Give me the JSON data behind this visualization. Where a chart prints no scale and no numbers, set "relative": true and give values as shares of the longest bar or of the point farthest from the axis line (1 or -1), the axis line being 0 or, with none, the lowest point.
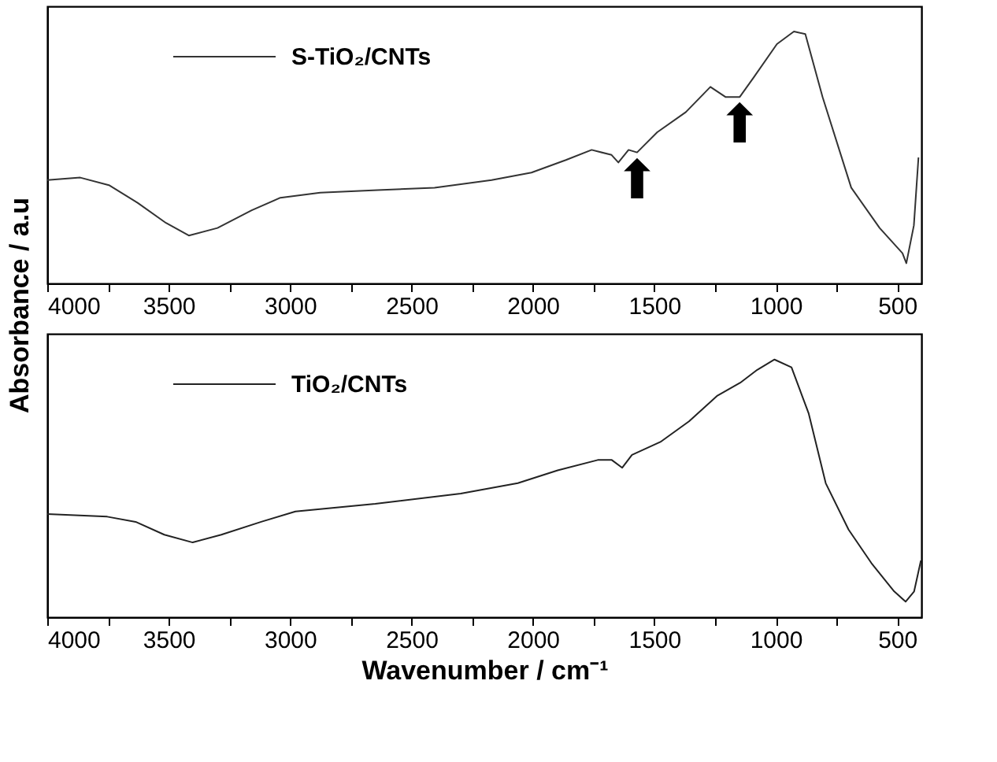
{
  "chart_data": [
    {
      "type": "line",
      "relative": true,
      "legend": "top left",
      "tick_labels": "x",
      "ylabel": "Absorbance / a.u",
      "xlim": [
        4000,
        400
      ],
      "xticks": [
        4000,
        {
          "value": 3750,
          "label": null
        },
        3500,
        {
          "value": 3250,
          "label": null
        },
        3000,
        {
          "value": 2750,
          "label": null
        },
        2500,
        {
          "value": 2250,
          "label": null
        },
        2000,
        {
          "value": 1750,
          "label": null
        },
        1500,
        {
          "value": 1250,
          "label": null
        },
        1000,
        {
          "value": 750,
          "label": null
        },
        500
      ],
      "annotations": [
        {
          "text": "⬆",
          "x": 1571,
          "y": 0.52
        },
        {
          "text": "⬆",
          "x": 1148,
          "y": 0.74
        }
      ],
      "series": [
        {
          "name": "S-TiO₂/CNTs",
          "color": "#333333",
          "x": [
            4000,
            3864,
            3746,
            3628,
            3511,
            3417,
            3299,
            3158,
            3040,
            2876,
            2640,
            2405,
            2170,
            2006,
            1864,
            1758,
            1676,
            1648,
            1606,
            1571,
            1488,
            1370,
            1269,
            1207,
            1148,
            1089,
            995,
            925,
            878,
            807,
            689,
            572,
            478,
            462,
            431,
            412
          ],
          "values": [
            0.41,
            0.42,
            0.39,
            0.32,
            0.24,
            0.19,
            0.22,
            0.29,
            0.34,
            0.36,
            0.37,
            0.38,
            0.41,
            0.44,
            0.49,
            0.53,
            0.51,
            0.48,
            0.53,
            0.52,
            0.6,
            0.68,
            0.78,
            0.74,
            0.74,
            0.82,
            0.95,
            1.0,
            0.99,
            0.74,
            0.38,
            0.22,
            0.12,
            0.08,
            0.23,
            0.5
          ]
        }
      ]
    },
    {
      "type": "line",
      "relative": true,
      "legend": "top left",
      "tick_labels": "x",
      "xlabel": "Wavenumber / cm⁻¹",
      "xlim": [
        4000,
        400
      ],
      "xticks": [
        4000,
        {
          "value": 3750,
          "label": null
        },
        3500,
        {
          "value": 3250,
          "label": null
        },
        3000,
        {
          "value": 2750,
          "label": null
        },
        2500,
        {
          "value": 2250,
          "label": null
        },
        2000,
        {
          "value": 1750,
          "label": null
        },
        1500,
        {
          "value": 1250,
          "label": null
        },
        1000,
        {
          "value": 750,
          "label": null
        },
        500
      ],
      "series": [
        {
          "name": "TiO₂/CNTs",
          "color": "#222222",
          "x": [
            4000,
            3753,
            3636,
            3518,
            3401,
            3283,
            3119,
            2978,
            2649,
            2297,
            2062,
            1898,
            1733,
            1675,
            1632,
            1592,
            1475,
            1357,
            1240,
            1146,
            1076,
            1005,
            935,
            864,
            794,
            700,
            606,
            512,
            465,
            430,
            402
          ],
          "values": [
            0.4,
            0.39,
            0.37,
            0.32,
            0.29,
            0.32,
            0.37,
            0.41,
            0.44,
            0.48,
            0.52,
            0.57,
            0.61,
            0.61,
            0.58,
            0.63,
            0.68,
            0.76,
            0.86,
            0.91,
            0.96,
            1.0,
            0.97,
            0.79,
            0.52,
            0.34,
            0.21,
            0.1,
            0.06,
            0.1,
            0.22
          ]
        }
      ]
    }
  ]
}
